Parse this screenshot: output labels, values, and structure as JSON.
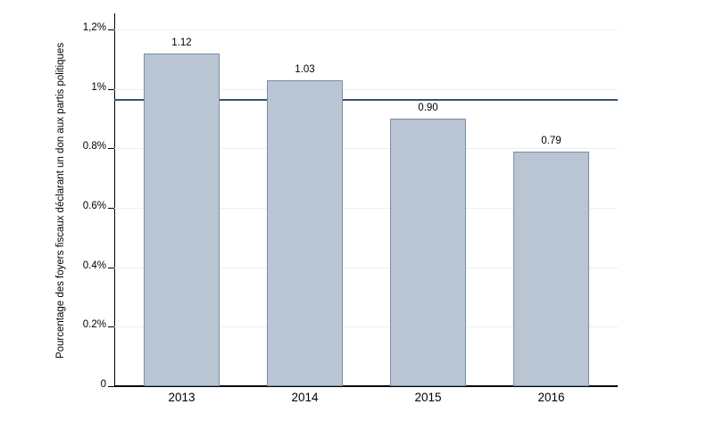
{
  "figure": {
    "background": "#ffffff"
  },
  "chart_data": {
    "type": "bar",
    "title": "",
    "xlabel": "",
    "ylabel": "Pourcentage des foyers fiscaux déclarant un don aux partis politiques",
    "categories": [
      "2013",
      "2014",
      "2015",
      "2016"
    ],
    "values": [
      1.12,
      1.03,
      0.9,
      0.79
    ],
    "bar_value_labels": [
      "1.12",
      "1.03",
      "0.90",
      "0.79"
    ],
    "yticks": [
      {
        "value": 1.2,
        "label": "1,2%"
      },
      {
        "value": 1.0,
        "label": "1%"
      },
      {
        "value": 0.8,
        "label": "0.8%"
      },
      {
        "value": 0.6,
        "label": "0.6%"
      },
      {
        "value": 0.4,
        "label": "0.4%"
      },
      {
        "value": 0.2,
        "label": "0.2%"
      },
      {
        "value": 0.0,
        "label": "0"
      }
    ],
    "ylim": [
      0,
      1.254
    ],
    "reference_line_value": 0.963,
    "grid": true,
    "legend": "none",
    "colors": {
      "bar_fill": "#b9c5d3",
      "bar_border": "#7a8da1",
      "reference_line": "#3b536d",
      "gridline": "#e9eff4",
      "axis": "#000000",
      "text": "#000000"
    }
  }
}
